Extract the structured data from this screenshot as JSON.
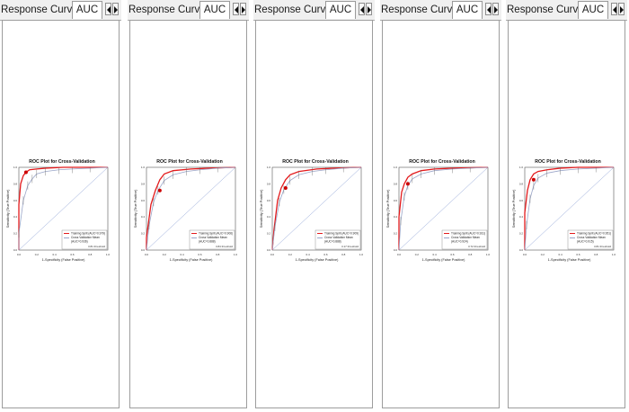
{
  "panels": [
    {
      "tab_title": "Response Curves",
      "active_tab": "AUC",
      "plot": {
        "title": "ROC Plot for Cross-Validation",
        "xlabel": "1-Specificity (False Positive)",
        "ylabel": "Sensitivity (True Positive)",
        "legend": [
          "Training Split (AUC=0.979)",
          "Cross Validation Mean",
          "(AUC=0.936)"
        ],
        "footer": "3.81 threshold"
      }
    },
    {
      "tab_title": "Response Curves",
      "active_tab": "AUC",
      "plot": {
        "title": "ROC Plot for Cross-Validation",
        "xlabel": "1-Specificity (False Positive)",
        "ylabel": "Sensitivity (True Positive)",
        "legend": [
          "Training Split (AUC=0.906)",
          "Cross Validation Mean",
          "(AUC=0.888)"
        ],
        "footer": "3.84 threshold"
      }
    },
    {
      "tab_title": "Response Curves",
      "active_tab": "AUC",
      "plot": {
        "title": "ROC Plot for Cross-Validation",
        "xlabel": "1-Specificity (False Positive)",
        "ylabel": "Sensitivity (True Positive)",
        "legend": [
          "Training Split (AUC=0.909)",
          "Cross Validation Mean",
          "(AUC=0.888)"
        ],
        "footer": "3.17 threshold"
      }
    },
    {
      "tab_title": "Response Curves",
      "active_tab": "AUC",
      "plot": {
        "title": "ROC Plot for Cross-Validation",
        "xlabel": "1-Specificity (False Positive)",
        "ylabel": "Sensitivity (True Positive)",
        "legend": [
          "Training Split (AUC=0.931)",
          "Cross Validation Mean",
          "(AUC=0.924)"
        ],
        "footer": "3.72 threshold"
      }
    },
    {
      "tab_title": "Response Curves",
      "active_tab": "AUC",
      "plot": {
        "title": "ROC Plot for Cross-Validation",
        "xlabel": "1-Specificity (False Positive)",
        "ylabel": "Sensitivity (True Positive)",
        "legend": [
          "Training Split (AUC=0.951)",
          "Cross Validation Mean",
          "(AUC=0.915)"
        ],
        "footer": "3.81 threshold"
      }
    }
  ],
  "axis_ticks": [
    "0.0",
    "0.2",
    "0.4",
    "0.6",
    "0.8",
    "1.0"
  ],
  "icons": {
    "scroll_left": "triangle-left-icon",
    "scroll_right": "triangle-right-icon"
  },
  "colors": {
    "training": "#e31a1c",
    "cv_mean": "#9aa5c8",
    "diagonal": "#8fa3d6",
    "marker": "#cc0000"
  },
  "chart_data": [
    {
      "type": "line",
      "xlim": [
        0,
        1
      ],
      "ylim": [
        0,
        1
      ],
      "series": [
        {
          "name": "Training Split (AUC=0.979)",
          "x": [
            0,
            0,
            0.02,
            0.05,
            0.08,
            0.12,
            0.2,
            0.3,
            0.5,
            0.75,
            1
          ],
          "y": [
            0,
            0.55,
            0.8,
            0.9,
            0.94,
            0.97,
            0.98,
            0.99,
            1,
            1,
            1
          ]
        },
        {
          "name": "Cross Validation Mean",
          "x": [
            0,
            0,
            0.05,
            0.1,
            0.15,
            0.2,
            0.3,
            0.45,
            0.6,
            0.8,
            1
          ],
          "y": [
            0,
            0.2,
            0.6,
            0.78,
            0.86,
            0.92,
            0.95,
            0.97,
            0.98,
            0.99,
            1
          ]
        }
      ],
      "marker": [
        0.08,
        0.94
      ]
    },
    {
      "type": "line",
      "xlim": [
        0,
        1
      ],
      "ylim": [
        0,
        1
      ],
      "series": [
        {
          "name": "Training Split (AUC=0.906)",
          "x": [
            0,
            0,
            0.05,
            0.1,
            0.15,
            0.2,
            0.3,
            0.5,
            0.7,
            1
          ],
          "y": [
            0,
            0.15,
            0.55,
            0.72,
            0.85,
            0.92,
            0.96,
            0.98,
            0.99,
            1
          ]
        },
        {
          "name": "Cross Validation Mean",
          "x": [
            0,
            0.03,
            0.08,
            0.13,
            0.2,
            0.3,
            0.45,
            0.6,
            0.8,
            1
          ],
          "y": [
            0,
            0.3,
            0.58,
            0.72,
            0.84,
            0.91,
            0.95,
            0.97,
            0.99,
            1
          ]
        }
      ],
      "marker": [
        0.15,
        0.72
      ]
    },
    {
      "type": "line",
      "xlim": [
        0,
        1
      ],
      "ylim": [
        0,
        1
      ],
      "series": [
        {
          "name": "Training Split (AUC=0.909)",
          "x": [
            0,
            0.02,
            0.06,
            0.1,
            0.15,
            0.2,
            0.3,
            0.5,
            0.7,
            1
          ],
          "y": [
            0,
            0.25,
            0.6,
            0.75,
            0.85,
            0.91,
            0.95,
            0.98,
            0.99,
            1
          ]
        },
        {
          "name": "Cross Validation Mean",
          "x": [
            0,
            0.03,
            0.08,
            0.13,
            0.2,
            0.3,
            0.45,
            0.6,
            0.8,
            1
          ],
          "y": [
            0,
            0.28,
            0.58,
            0.73,
            0.84,
            0.91,
            0.95,
            0.97,
            0.99,
            1
          ]
        }
      ],
      "marker": [
        0.15,
        0.75
      ]
    },
    {
      "type": "line",
      "xlim": [
        0,
        1
      ],
      "ylim": [
        0,
        1
      ],
      "series": [
        {
          "name": "Training Split (AUC=0.931)",
          "x": [
            0,
            0,
            0.03,
            0.06,
            0.1,
            0.15,
            0.25,
            0.4,
            0.6,
            1
          ],
          "y": [
            0,
            0.4,
            0.7,
            0.8,
            0.88,
            0.92,
            0.96,
            0.98,
            0.99,
            1
          ]
        },
        {
          "name": "Cross Validation Mean",
          "x": [
            0,
            0.02,
            0.06,
            0.1,
            0.15,
            0.25,
            0.4,
            0.6,
            0.8,
            1
          ],
          "y": [
            0,
            0.35,
            0.65,
            0.78,
            0.86,
            0.92,
            0.96,
            0.98,
            0.99,
            1
          ]
        }
      ],
      "marker": [
        0.1,
        0.8
      ]
    },
    {
      "type": "line",
      "xlim": [
        0,
        1
      ],
      "ylim": [
        0,
        1
      ],
      "series": [
        {
          "name": "Training Split (AUC=0.951)",
          "x": [
            0,
            0,
            0.03,
            0.06,
            0.1,
            0.15,
            0.25,
            0.4,
            0.6,
            1
          ],
          "y": [
            0,
            0.45,
            0.72,
            0.85,
            0.92,
            0.95,
            0.97,
            0.99,
            1,
            1
          ]
        },
        {
          "name": "Cross Validation Mean",
          "x": [
            0,
            0.02,
            0.06,
            0.1,
            0.15,
            0.25,
            0.4,
            0.6,
            0.8,
            1
          ],
          "y": [
            0,
            0.3,
            0.62,
            0.78,
            0.87,
            0.93,
            0.96,
            0.98,
            0.99,
            1
          ]
        }
      ],
      "marker": [
        0.1,
        0.85
      ]
    }
  ]
}
